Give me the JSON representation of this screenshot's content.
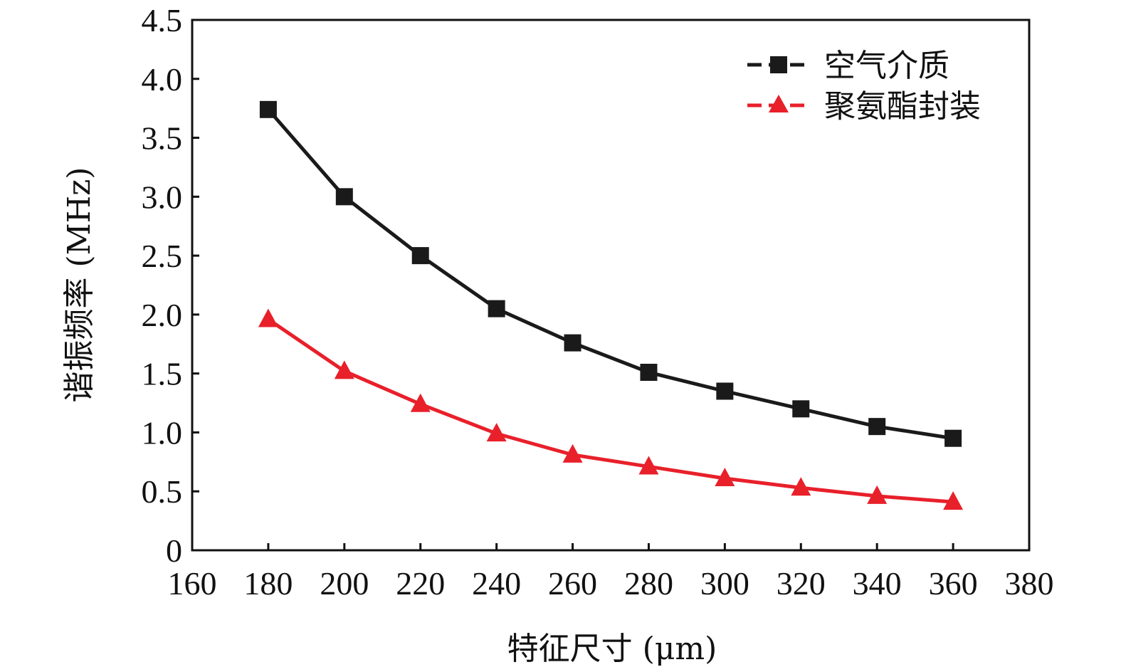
{
  "chart_data": {
    "type": "line",
    "title": "",
    "xlabel": "特征尺寸 (μm)",
    "ylabel": "谐振频率 (MHz)",
    "xlim": [
      160,
      380
    ],
    "ylim": [
      0,
      4.5
    ],
    "xticks": [
      160,
      180,
      200,
      220,
      240,
      260,
      280,
      300,
      320,
      340,
      360,
      380
    ],
    "yticks": [
      0,
      0.5,
      1.0,
      1.5,
      2.0,
      2.5,
      3.0,
      3.5,
      4.0,
      4.5
    ],
    "ytick_labels": [
      "0",
      "0.5",
      "1.0",
      "1.5",
      "2.0",
      "2.5",
      "3.0",
      "3.5",
      "4.0",
      "4.5"
    ],
    "grid": false,
    "legend_position": "top-right",
    "x": [
      180,
      200,
      220,
      240,
      260,
      280,
      300,
      320,
      340,
      360
    ],
    "series": [
      {
        "name": "空气介质",
        "marker": "square",
        "color": "#1a1a1a",
        "values": [
          3.74,
          3.0,
          2.5,
          2.05,
          1.76,
          1.51,
          1.35,
          1.2,
          1.05,
          0.95
        ]
      },
      {
        "name": "聚氨酯封装",
        "marker": "triangle",
        "color": "#e8202a",
        "values": [
          1.96,
          1.52,
          1.24,
          0.99,
          0.81,
          0.71,
          0.61,
          0.53,
          0.46,
          0.41
        ]
      }
    ]
  }
}
